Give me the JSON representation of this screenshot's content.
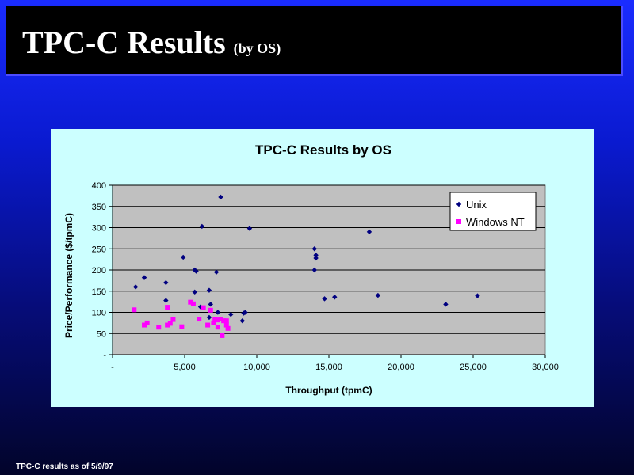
{
  "slide": {
    "title_main": "TPC-C Results",
    "title_sub": "(by OS)",
    "footer": "TPC-C results as of 5/9/97"
  },
  "colors": {
    "background_top": "#1a2cff",
    "title_bar": "#000000",
    "chart_panel": "#ccffff",
    "plot_area": "#c0c0c0",
    "unix": "#000080",
    "windows_nt": "#ff00ff"
  },
  "chart_data": {
    "type": "scatter",
    "title": "TPC-C Results by OS",
    "xlabel": "Throughput (tpmC)",
    "ylabel": "Price/Performance ($/tpmC)",
    "xlim": [
      0,
      30000
    ],
    "ylim": [
      0,
      400
    ],
    "x_ticks": [
      0,
      5000,
      10000,
      15000,
      20000,
      25000,
      30000
    ],
    "x_tick_labels": [
      "-",
      "5,000",
      "10,000",
      "15,000",
      "20,000",
      "25,000",
      "30,000"
    ],
    "y_ticks": [
      0,
      50,
      100,
      150,
      200,
      250,
      300,
      350,
      400
    ],
    "y_tick_labels": [
      "-",
      "50",
      "100",
      "150",
      "200",
      "250",
      "300",
      "350",
      "400"
    ],
    "grid": "horizontal",
    "legend_position": "top-right",
    "series": [
      {
        "name": "Unix",
        "marker": "diamond",
        "color": "#000080",
        "points": [
          [
            1600,
            160
          ],
          [
            2200,
            182
          ],
          [
            3700,
            170
          ],
          [
            3700,
            128
          ],
          [
            4900,
            230
          ],
          [
            5700,
            200
          ],
          [
            5800,
            197
          ],
          [
            5700,
            148
          ],
          [
            6200,
            303
          ],
          [
            6100,
            113
          ],
          [
            6700,
            152
          ],
          [
            6800,
            119
          ],
          [
            6700,
            88
          ],
          [
            7200,
            195
          ],
          [
            7500,
            372
          ],
          [
            7300,
            100
          ],
          [
            8200,
            95
          ],
          [
            9100,
            98
          ],
          [
            9200,
            100
          ],
          [
            9000,
            80
          ],
          [
            9500,
            298
          ],
          [
            14000,
            250
          ],
          [
            14100,
            235
          ],
          [
            14100,
            228
          ],
          [
            14000,
            200
          ],
          [
            14700,
            132
          ],
          [
            15400,
            136
          ],
          [
            17800,
            290
          ],
          [
            18400,
            140
          ],
          [
            23100,
            119
          ],
          [
            25300,
            139
          ]
        ]
      },
      {
        "name": "Windows NT",
        "marker": "square",
        "color": "#ff00ff",
        "points": [
          [
            1500,
            106
          ],
          [
            2200,
            70
          ],
          [
            2400,
            75
          ],
          [
            3200,
            65
          ],
          [
            3800,
            112
          ],
          [
            3800,
            70
          ],
          [
            4000,
            74
          ],
          [
            4200,
            83
          ],
          [
            4800,
            66
          ],
          [
            5400,
            124
          ],
          [
            5600,
            120
          ],
          [
            6000,
            84
          ],
          [
            6300,
            111
          ],
          [
            6600,
            70
          ],
          [
            6800,
            105
          ],
          [
            7000,
            75
          ],
          [
            7100,
            83
          ],
          [
            7300,
            82
          ],
          [
            7300,
            65
          ],
          [
            7500,
            84
          ],
          [
            7600,
            45
          ],
          [
            7700,
            80
          ],
          [
            7900,
            80
          ],
          [
            7900,
            70
          ],
          [
            8000,
            62
          ]
        ]
      }
    ]
  }
}
